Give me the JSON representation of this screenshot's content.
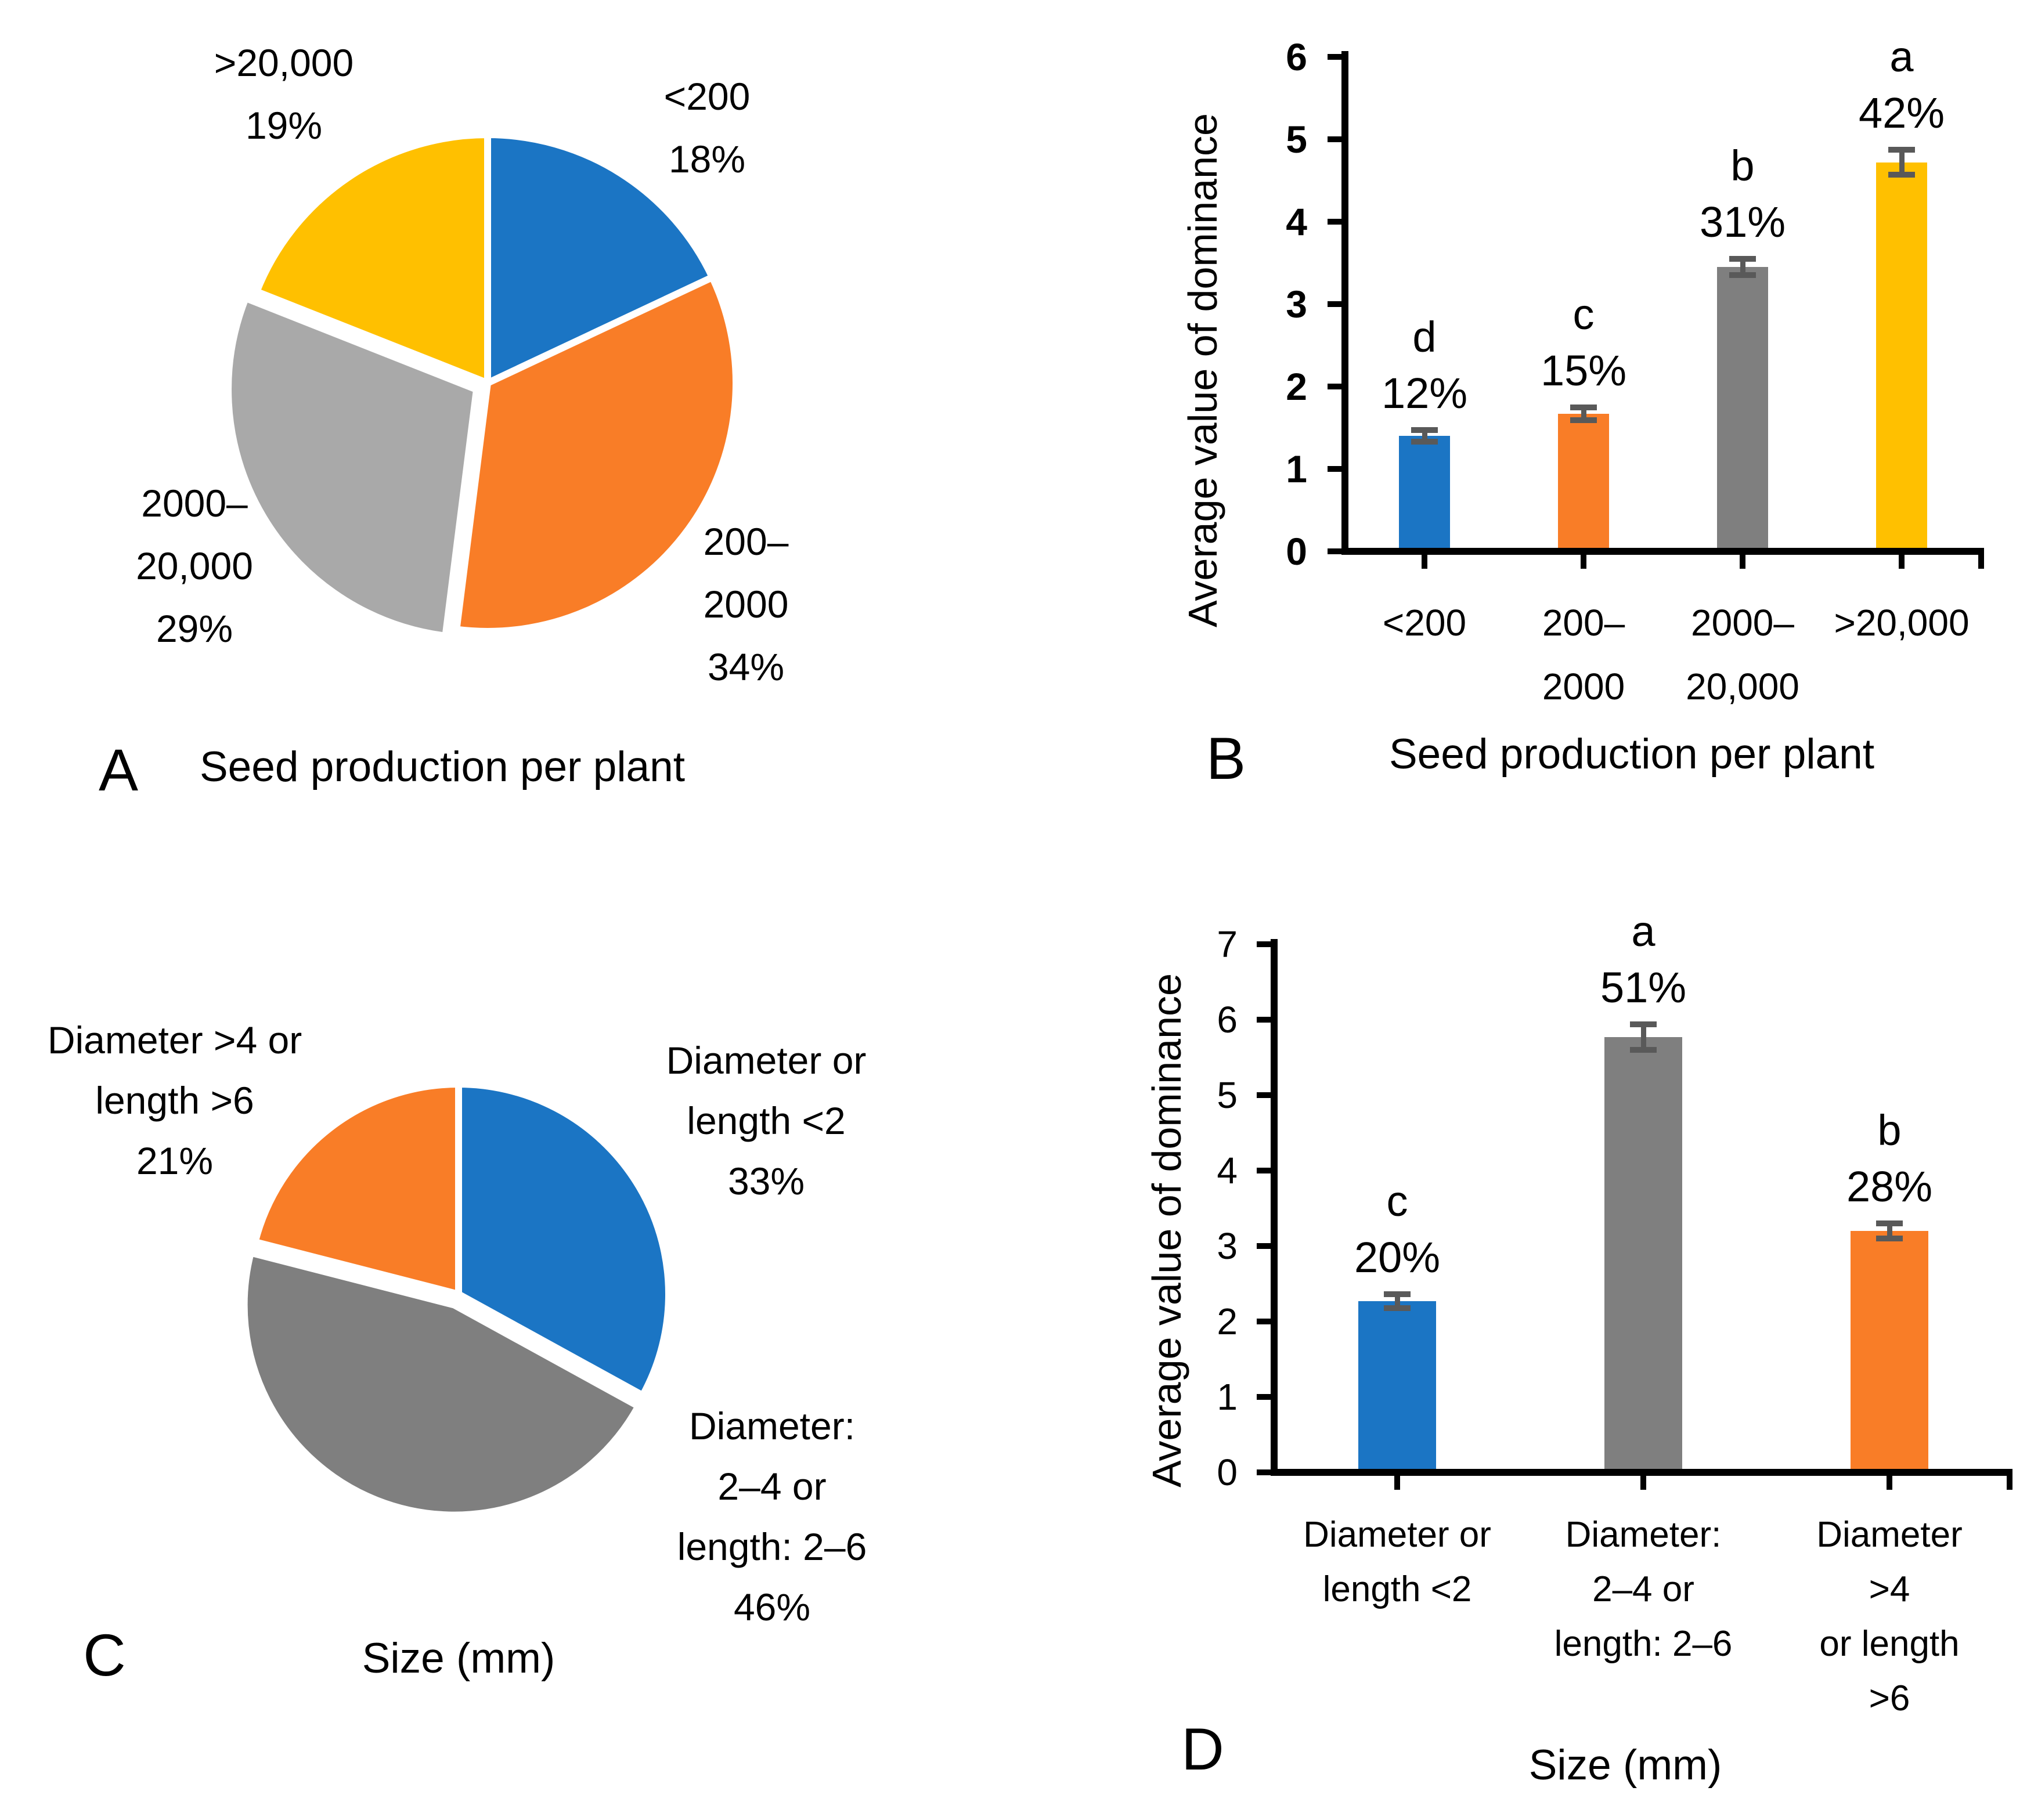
{
  "colors": {
    "blue": "#1B75C4",
    "orange": "#F97D27",
    "grey_dark": "#7F7F7F",
    "grey_light": "#A9A9A9",
    "yellow": "#FFC000",
    "error_bar": "#595959",
    "axis": "#000000"
  },
  "panels": {
    "A": {
      "letter": "A",
      "caption": "Seed production per plant",
      "chart_data": {
        "type": "pie",
        "title": "Seed production per plant",
        "start_angle_deg": 0,
        "direction": "clockwise",
        "slices": [
          {
            "category": "<200",
            "percent": 18,
            "color_key": "blue",
            "label_text": "<200\n18%",
            "exploded": false
          },
          {
            "category": "200–2000",
            "percent": 34,
            "color_key": "orange",
            "label_text": "200–\n2000\n34%",
            "exploded": false
          },
          {
            "category": "2000–20,000",
            "percent": 29,
            "color_key": "grey_light",
            "label_text": "2000–\n20,000\n29%",
            "exploded": true
          },
          {
            "category": ">20,000",
            "percent": 19,
            "color_key": "yellow",
            "label_text": ">20,000\n19%",
            "exploded": false
          }
        ]
      }
    },
    "B": {
      "letter": "B",
      "caption": "Seed production per plant",
      "ylabel": "Average value of dominance",
      "chart_data": {
        "type": "bar",
        "ylabel": "Average value of dominance",
        "xlabel": "Seed production per plant",
        "ylim": [
          0,
          6
        ],
        "yticks": [
          0,
          1,
          2,
          3,
          4,
          5,
          6
        ],
        "bars": [
          {
            "category": "<200",
            "category_lines": "<200",
            "value": 1.4,
            "error": 0.07,
            "color_key": "blue",
            "sig_letter": "d",
            "percent_label": "12%"
          },
          {
            "category": "200–2000",
            "category_lines": "200–\n2000",
            "value": 1.67,
            "error": 0.08,
            "color_key": "orange",
            "sig_letter": "c",
            "percent_label": "15%"
          },
          {
            "category": "2000–20,000",
            "category_lines": "2000–\n20,000",
            "value": 3.45,
            "error": 0.1,
            "color_key": "grey_dark",
            "sig_letter": "b",
            "percent_label": "31%"
          },
          {
            "category": ">20,000",
            "category_lines": ">20,000",
            "value": 4.72,
            "error": 0.15,
            "color_key": "yellow",
            "sig_letter": "a",
            "percent_label": "42%"
          }
        ]
      }
    },
    "C": {
      "letter": "C",
      "caption": "Size (mm)",
      "chart_data": {
        "type": "pie",
        "title": "Size (mm)",
        "start_angle_deg": 0,
        "direction": "clockwise",
        "slices": [
          {
            "category": "Diameter or length <2",
            "percent": 33,
            "color_key": "blue",
            "label_text": "Diameter or\nlength <2\n33%",
            "exploded": false
          },
          {
            "category": "Diameter: 2–4 or length: 2–6",
            "percent": 46,
            "color_key": "grey_dark",
            "label_text": "Diameter:\n2–4 or\nlength: 2–6\n46%",
            "exploded": true
          },
          {
            "category": "Diameter >4 or length >6",
            "percent": 21,
            "color_key": "orange",
            "label_text": "Diameter >4 or\nlength >6\n21%",
            "exploded": false
          }
        ]
      }
    },
    "D": {
      "letter": "D",
      "caption": "Size (mm)",
      "ylabel": "Average value of dominance",
      "chart_data": {
        "type": "bar",
        "ylabel": "Average value of dominance",
        "xlabel": "Size (mm)",
        "ylim": [
          0,
          7
        ],
        "yticks": [
          0,
          1,
          2,
          3,
          4,
          5,
          6,
          7
        ],
        "bars": [
          {
            "category": "Diameter or length <2",
            "category_lines": "Diameter or\nlength <2",
            "value": 2.27,
            "error": 0.09,
            "color_key": "blue",
            "sig_letter": "c",
            "percent_label": "20%"
          },
          {
            "category": "Diameter: 2–4 or length: 2–6",
            "category_lines": "Diameter:\n2–4 or\nlength: 2–6",
            "value": 5.77,
            "error": 0.17,
            "color_key": "grey_dark",
            "sig_letter": "a",
            "percent_label": "51%"
          },
          {
            "category": "Diameter >4 or length >6",
            "category_lines": "Diameter >4\nor length >6",
            "value": 3.2,
            "error": 0.1,
            "color_key": "orange",
            "sig_letter": "b",
            "percent_label": "28%"
          }
        ]
      }
    }
  }
}
